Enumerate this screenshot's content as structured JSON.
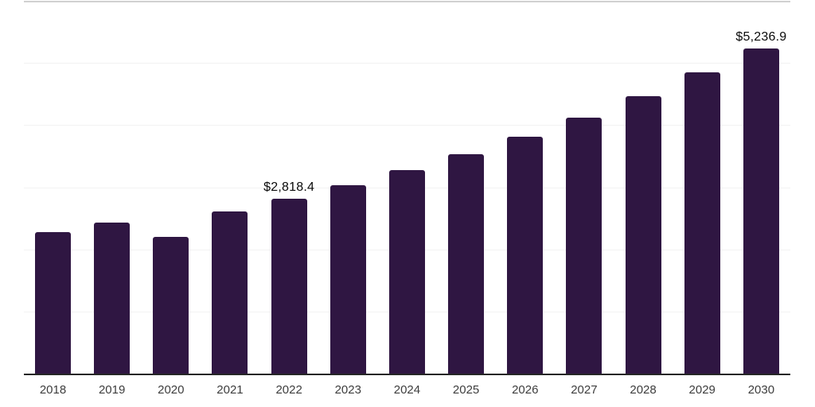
{
  "chart_data": {
    "type": "bar",
    "title": "",
    "xlabel": "",
    "ylabel": "",
    "categories": [
      "2018",
      "2019",
      "2020",
      "2021",
      "2022",
      "2023",
      "2024",
      "2025",
      "2026",
      "2027",
      "2028",
      "2029",
      "2030"
    ],
    "values": [
      2272,
      2426,
      2196,
      2605,
      2818.4,
      3028,
      3271,
      3527,
      3810,
      4117,
      4462,
      4846,
      5236.9
    ],
    "data_labels": [
      "",
      "",
      "",
      "",
      "$2,818.4",
      "",
      "",
      "",
      "",
      "",
      "",
      "",
      "$5,236.9"
    ],
    "ylim": [
      0,
      6000
    ],
    "gridline_step": 1000,
    "grid_on": true,
    "legend": "none",
    "bars": [
      {
        "year": "2018",
        "value": 2272,
        "label": ""
      },
      {
        "year": "2019",
        "value": 2426,
        "label": ""
      },
      {
        "year": "2020",
        "value": 2196,
        "label": ""
      },
      {
        "year": "2021",
        "value": 2605,
        "label": ""
      },
      {
        "year": "2022",
        "value": 2818.4,
        "label": "$2,818.4"
      },
      {
        "year": "2023",
        "value": 3028,
        "label": ""
      },
      {
        "year": "2024",
        "value": 3271,
        "label": ""
      },
      {
        "year": "2025",
        "value": 3527,
        "label": ""
      },
      {
        "year": "2026",
        "value": 3810,
        "label": ""
      },
      {
        "year": "2027",
        "value": 4117,
        "label": ""
      },
      {
        "year": "2028",
        "value": 4462,
        "label": ""
      },
      {
        "year": "2029",
        "value": 4846,
        "label": ""
      },
      {
        "year": "2030",
        "value": 5236.9,
        "label": "$5,236.9"
      }
    ],
    "colors": {
      "bar": "#2f1642",
      "axis_line": "#262626",
      "gridline": "#f2f2f2",
      "top_border": "#d0d0d0",
      "data_label_text": "#0a0a0a",
      "tick_label_text": "#3d3d3d",
      "background": "#ffffff"
    }
  }
}
